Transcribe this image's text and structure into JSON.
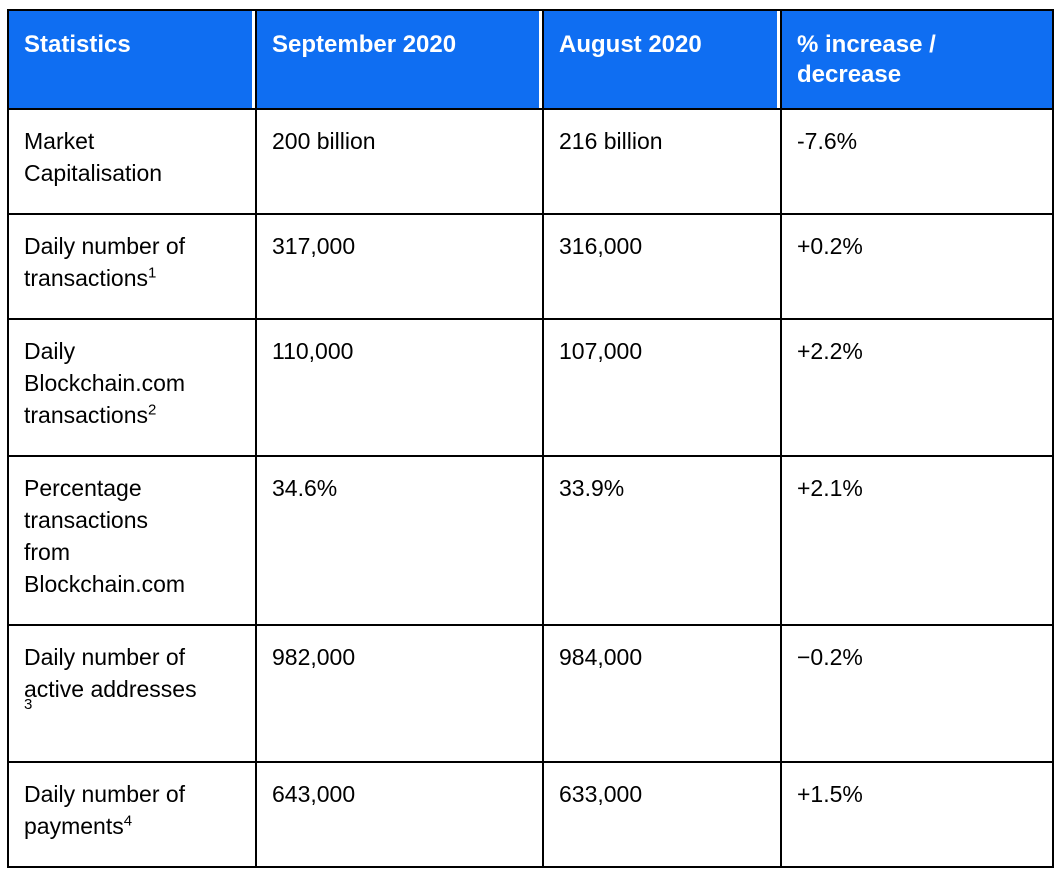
{
  "table": {
    "accent_color": "#0f6ef2",
    "header_text_color": "#ffffff",
    "body_text_color": "#000000",
    "border_color": "#000000",
    "columns": [
      "Statistics",
      "September 2020",
      "August 2020",
      "% increase / decrease"
    ],
    "rows": [
      {
        "label": "Market Capitalisation",
        "label_lines": [
          "Market",
          "Capitalisation"
        ],
        "footnote": "",
        "footnote_own_line": false,
        "sep2020": "200 billion",
        "aug2020": "216 billion",
        "change": "-7.6%"
      },
      {
        "label": "Daily number of transactions",
        "label_lines": [
          "Daily number of",
          "transactions"
        ],
        "footnote": "1",
        "footnote_own_line": false,
        "sep2020": "317,000",
        "aug2020": "316,000",
        "change": "+0.2%"
      },
      {
        "label": "Daily Blockchain.com transactions",
        "label_lines": [
          "Daily",
          "Blockchain.com",
          "transactions"
        ],
        "footnote": "2",
        "footnote_own_line": false,
        "sep2020": "110,000",
        "aug2020": "107,000",
        "change": "+2.2%"
      },
      {
        "label": "Percentage transactions from Blockchain.com",
        "label_lines": [
          "Percentage",
          "transactions",
          "from",
          "Blockchain.com"
        ],
        "footnote": "",
        "footnote_own_line": false,
        "sep2020": "34.6%",
        "aug2020": "33.9%",
        "change": "+2.1%"
      },
      {
        "label": "Daily number of active addresses",
        "label_lines": [
          "Daily number of",
          "active addresses"
        ],
        "footnote": "3",
        "footnote_own_line": true,
        "sep2020": "982,000",
        "aug2020": "984,000",
        "change": "−0.2%"
      },
      {
        "label": "Daily number of payments",
        "label_lines": [
          "Daily number of",
          "payments"
        ],
        "footnote": "4",
        "footnote_own_line": false,
        "sep2020": "643,000",
        "aug2020": "633,000",
        "change": "+1.5%"
      }
    ]
  }
}
